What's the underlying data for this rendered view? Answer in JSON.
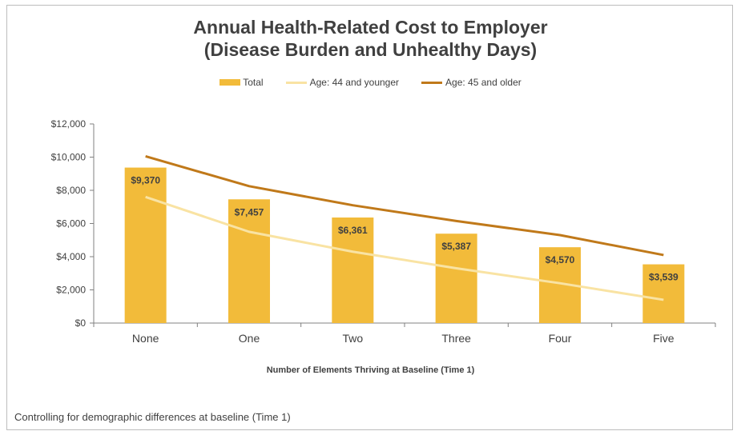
{
  "chart_data": {
    "type": "bar",
    "title": "Annual Health-Related Cost to Employer",
    "subtitle": "(Disease Burden and Unhealthy Days)",
    "xlabel": "Number of Elements Thriving at Baseline (Time 1)",
    "ylabel": "",
    "ylim": [
      0,
      12000
    ],
    "yticks": [
      0,
      2000,
      4000,
      6000,
      8000,
      10000,
      12000
    ],
    "ytick_labels": [
      "$0",
      "$2,000",
      "$4,000",
      "$6,000",
      "$8,000",
      "$10,000",
      "$12,000"
    ],
    "categories": [
      "None",
      "One",
      "Two",
      "Three",
      "Four",
      "Five"
    ],
    "legend_position": "top",
    "grid": false,
    "series": [
      {
        "name": "Total",
        "kind": "bar",
        "color": "#F2BB3A",
        "values": [
          9370,
          7457,
          6361,
          5387,
          4570,
          3539
        ],
        "labels": [
          "$9,370",
          "$7,457",
          "$6,361",
          "$5,387",
          "$4,570",
          "$3,539"
        ]
      },
      {
        "name": "Age: 44 and younger",
        "kind": "line",
        "color": "#F9E3A3",
        "values": [
          7600,
          5500,
          4300,
          3300,
          2400,
          1400
        ]
      },
      {
        "name": "Age: 45 and older",
        "kind": "line",
        "color": "#C0791A",
        "values": [
          10050,
          8250,
          7100,
          6150,
          5300,
          4100
        ]
      }
    ]
  },
  "footnote": "Controlling for demographic differences at baseline (Time 1)"
}
